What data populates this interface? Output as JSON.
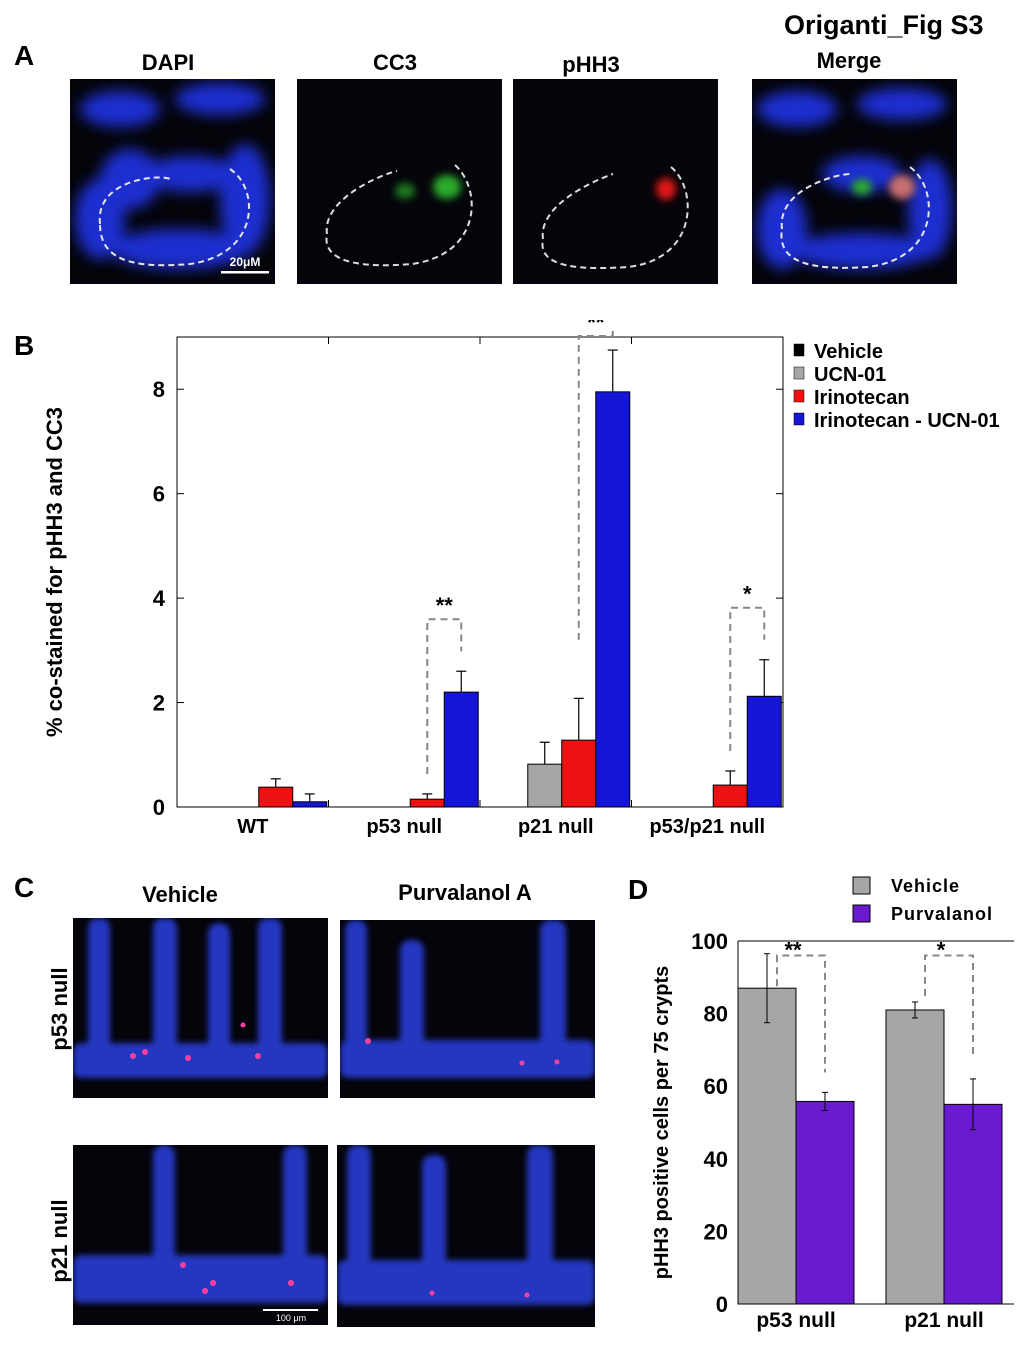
{
  "figure_title": "Origanti_Fig S3",
  "panel_a": {
    "letter": "A",
    "channels": [
      "DAPI",
      "CC3",
      "pHH3",
      "Merge"
    ],
    "scale_bar": "20μM"
  },
  "panel_c": {
    "letter": "C",
    "columns": [
      "Vehicle",
      "Purvalanol A"
    ],
    "rows": [
      "p53 null",
      "p21 null"
    ],
    "scale_bar": "100 μm"
  },
  "colors": {
    "vehicle": "#000000",
    "ucn01": "#a6a6a6",
    "irinotecan": "#ee1111",
    "irinotecan_ucn01": "#1515d6",
    "purvalanol": "#6a1bd0",
    "vehicle_d": "#a6a6a6",
    "bracket": "#888888"
  },
  "chart_data": [
    {
      "panel": "B",
      "type": "bar",
      "ylabel": "% co-stained for pHH3 and CC3",
      "ylim": [
        0,
        9
      ],
      "yticks": [
        0,
        2,
        4,
        6,
        8
      ],
      "categories": [
        "WT",
        "p53 null",
        "p21 null",
        "p53/p21 null"
      ],
      "legend_position": "top-right",
      "series": [
        {
          "name": "Vehicle",
          "values": [
            0,
            0,
            0,
            0
          ],
          "errors": [
            0,
            0,
            0,
            0
          ]
        },
        {
          "name": "UCN-01",
          "values": [
            0,
            0,
            0.82,
            0
          ],
          "errors": [
            0,
            0,
            0.42,
            0
          ]
        },
        {
          "name": "Irinotecan",
          "values": [
            0.38,
            0.15,
            1.28,
            0.42
          ],
          "errors": [
            0.16,
            0.1,
            0.8,
            0.27
          ]
        },
        {
          "name": "Irinotecan - UCN-01",
          "values": [
            0.1,
            2.2,
            7.95,
            2.12
          ],
          "errors": [
            0.15,
            0.4,
            0.8,
            0.7
          ]
        }
      ],
      "significance": [
        {
          "category": "p53 null",
          "label": "**"
        },
        {
          "category": "p21 null",
          "label": "**"
        },
        {
          "category": "p53/p21 null",
          "label": "*"
        }
      ]
    },
    {
      "panel": "D",
      "type": "bar",
      "ylabel": "pHH3 positive cells per 75 crypts",
      "ylim": [
        0,
        100
      ],
      "yticks": [
        0,
        20,
        40,
        60,
        80,
        100
      ],
      "categories": [
        "p53 null",
        "p21 null"
      ],
      "legend_position": "top",
      "series": [
        {
          "name": "Vehicle",
          "values": [
            87,
            81
          ],
          "errors": [
            9.5,
            2.2
          ]
        },
        {
          "name": "Purvalanol",
          "values": [
            55.8,
            55
          ],
          "errors": [
            2.5,
            7
          ]
        }
      ],
      "significance": [
        {
          "category": "p53 null",
          "label": "**"
        },
        {
          "category": "p21 null",
          "label": "*"
        }
      ]
    }
  ]
}
